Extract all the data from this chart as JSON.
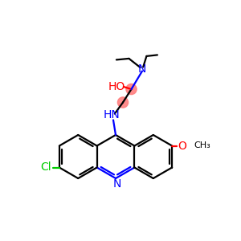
{
  "bg_color": "#ffffff",
  "bond_color": "#000000",
  "n_color": "#0000ff",
  "o_color": "#ff0000",
  "cl_color": "#00cc00",
  "highlight_color": "#ff8080",
  "line_width": 1.6,
  "figsize": [
    3.0,
    3.0
  ],
  "dpi": 100,
  "xlim": [
    0,
    10
  ],
  "ylim": [
    0,
    10
  ]
}
